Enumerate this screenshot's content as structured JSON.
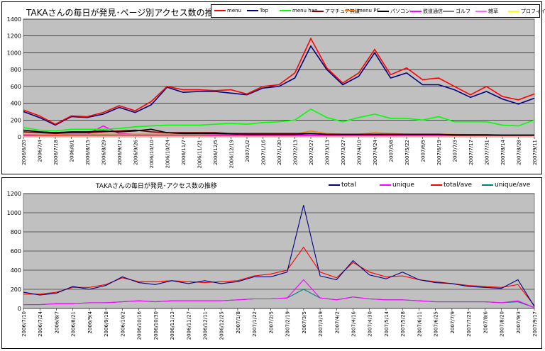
{
  "charts": [
    {
      "title": "TAKAさんの毎日が発見･ページ別アクセス数の推移",
      "legend": [
        "menu",
        "Top",
        "menu han",
        "アマチュア無線",
        "menu PC",
        "パソコン",
        "鉄道通信",
        "ゴルフ",
        "雑草",
        "プロフィイ"
      ]
    },
    {
      "title": "TAKAさんの毎日が発見･アクセス数の推移",
      "legend": [
        "total",
        "unique",
        "total/ave",
        "unique/ave"
      ]
    }
  ],
  "chart_data": [
    {
      "type": "line",
      "title": "TAKAさんの毎日が発見･ページ別アクセス数の推移",
      "ylim": [
        0,
        1400
      ],
      "yticks": [
        0,
        200,
        400,
        600,
        800,
        1000,
        1200,
        1400
      ],
      "grid": true,
      "legend_position": "top",
      "x": [
        "2006/6/20",
        "2006/7/4",
        "2006/7/18",
        "2006/8/1",
        "2006/8/15",
        "2006/8/29",
        "2006/9/12",
        "2006/9/26",
        "2006/10/10",
        "2006/10/24",
        "2006/11/7",
        "2006/11/21",
        "2006/12/5",
        "2006/12/19",
        "2007/1/2",
        "2007/1/16",
        "2007/1/30",
        "2007/2/13",
        "2007/2/27",
        "2007/3/13",
        "2007/3/27",
        "2007/4/10",
        "2007/4/24",
        "2007/5/8",
        "2007/5/22",
        "2007/6/5",
        "2007/6/19",
        "2007/7/3",
        "2007/7/17",
        "2007/7/31",
        "2007/8/14",
        "2007/8/28",
        "2007/9/11"
      ],
      "series": [
        {
          "name": "menu",
          "color": "#ff0000",
          "values": [
            320,
            250,
            150,
            250,
            240,
            290,
            370,
            310,
            420,
            600,
            560,
            560,
            550,
            560,
            510,
            600,
            620,
            760,
            1170,
            820,
            640,
            760,
            1040,
            740,
            820,
            680,
            700,
            600,
            500,
            600,
            480,
            440,
            510
          ]
        },
        {
          "name": "Top",
          "color": "#000080",
          "values": [
            300,
            230,
            140,
            240,
            230,
            270,
            350,
            290,
            380,
            590,
            530,
            540,
            540,
            520,
            500,
            580,
            600,
            700,
            1080,
            800,
            620,
            720,
            1000,
            700,
            760,
            620,
            620,
            560,
            470,
            540,
            450,
            390,
            460
          ]
        },
        {
          "name": "menu han",
          "color": "#00ff00",
          "values": [
            110,
            80,
            70,
            90,
            90,
            90,
            100,
            120,
            130,
            140,
            140,
            140,
            150,
            160,
            150,
            170,
            180,
            200,
            330,
            230,
            180,
            230,
            270,
            220,
            220,
            200,
            240,
            180,
            180,
            180,
            140,
            130,
            200
          ]
        },
        {
          "name": "アマチュア無線",
          "color": "#800000",
          "values": [
            60,
            50,
            40,
            50,
            50,
            60,
            70,
            80,
            60,
            50,
            50,
            50,
            50,
            40,
            40,
            40,
            40,
            40,
            40,
            30,
            30,
            30,
            30,
            30,
            30,
            30,
            30,
            20,
            20,
            20,
            20,
            20,
            20
          ]
        },
        {
          "name": "menu PC",
          "color": "#ff8000",
          "values": [
            30,
            25,
            25,
            25,
            30,
            30,
            30,
            30,
            30,
            30,
            30,
            30,
            30,
            30,
            30,
            30,
            30,
            30,
            70,
            40,
            30,
            30,
            50,
            40,
            30,
            30,
            30,
            30,
            25,
            25,
            20,
            20,
            25
          ]
        },
        {
          "name": "パソコン",
          "color": "#000000",
          "values": [
            80,
            60,
            50,
            60,
            60,
            70,
            60,
            70,
            90,
            50,
            40,
            40,
            40,
            35,
            30,
            30,
            30,
            30,
            40,
            30,
            30,
            30,
            30,
            30,
            30,
            30,
            30,
            25,
            25,
            25,
            20,
            20,
            20
          ]
        },
        {
          "name": "鉄道通信",
          "color": "#ff00ff",
          "values": [
            20,
            20,
            20,
            30,
            30,
            130,
            40,
            30,
            30,
            30,
            30,
            30,
            20,
            20,
            20,
            20,
            20,
            20,
            20,
            20,
            20,
            20,
            20,
            20,
            20,
            20,
            20,
            20,
            20,
            20,
            20,
            20,
            20
          ]
        },
        {
          "name": "ゴルフ",
          "color": "#808080",
          "values": [
            15,
            15,
            15,
            15,
            15,
            15,
            15,
            15,
            15,
            15,
            15,
            15,
            15,
            15,
            15,
            15,
            15,
            15,
            15,
            15,
            15,
            15,
            15,
            15,
            15,
            15,
            15,
            15,
            15,
            15,
            15,
            15,
            15
          ]
        },
        {
          "name": "雑草",
          "color": "#ff66ff",
          "values": [
            10,
            10,
            10,
            10,
            10,
            10,
            10,
            10,
            10,
            10,
            10,
            10,
            10,
            10,
            10,
            10,
            10,
            10,
            10,
            10,
            10,
            10,
            10,
            10,
            10,
            10,
            10,
            10,
            10,
            10,
            10,
            10,
            10
          ]
        },
        {
          "name": "プロフィイ",
          "color": "#ffff00",
          "values": [
            5,
            5,
            5,
            5,
            5,
            5,
            5,
            5,
            5,
            5,
            5,
            5,
            5,
            5,
            5,
            5,
            5,
            5,
            5,
            5,
            5,
            5,
            5,
            5,
            5,
            5,
            5,
            5,
            5,
            5,
            5,
            5,
            5
          ]
        }
      ]
    },
    {
      "type": "line",
      "title": "TAKAさんの毎日が発見･アクセス数の推移",
      "ylim": [
        0,
        1200
      ],
      "yticks": [
        0,
        200,
        400,
        600,
        800,
        1000,
        1200
      ],
      "grid": true,
      "legend_position": "top-right",
      "x": [
        "2006/7/10",
        "2006/7/24",
        "2006/8/7",
        "2006/8/21",
        "2006/9/4",
        "2006/9/18",
        "2006/10/2",
        "2006/10/16",
        "2006/10/30",
        "2006/11/13",
        "2006/11/27",
        "2006/12/11",
        "2006/12/25",
        "2007/1/8",
        "2007/1/22",
        "2007/2/5",
        "2007/2/19",
        "2007/3/5",
        "2007/3/19",
        "2007/4/2",
        "2007/4/16",
        "2007/4/30",
        "2007/5/14",
        "2007/5/28",
        "2007/6/11",
        "2007/6/25",
        "2007/7/9",
        "2007/7/23",
        "2007/8/6",
        "2007/8/20",
        "2007/9/3",
        "2007/9/17"
      ],
      "series": [
        {
          "name": "total",
          "color": "#000080",
          "values": [
            170,
            140,
            160,
            230,
            200,
            240,
            330,
            270,
            250,
            290,
            260,
            290,
            260,
            280,
            330,
            330,
            380,
            1080,
            340,
            300,
            500,
            350,
            310,
            380,
            300,
            270,
            260,
            230,
            220,
            210,
            300,
            20
          ]
        },
        {
          "name": "unique",
          "color": "#ff00ff",
          "values": [
            40,
            40,
            50,
            50,
            60,
            60,
            70,
            80,
            70,
            80,
            80,
            80,
            80,
            90,
            100,
            100,
            110,
            300,
            110,
            90,
            120,
            100,
            90,
            90,
            80,
            70,
            70,
            70,
            70,
            60,
            80,
            10
          ]
        },
        {
          "name": "total/ave",
          "color": "#ff0000",
          "values": [
            150,
            150,
            170,
            220,
            220,
            250,
            320,
            280,
            280,
            290,
            280,
            270,
            280,
            290,
            340,
            360,
            400,
            640,
            380,
            320,
            480,
            380,
            330,
            340,
            300,
            280,
            260,
            240,
            230,
            220,
            250,
            30
          ]
        },
        {
          "name": "unique/ave",
          "color": "#008080",
          "values": [
            40,
            40,
            50,
            50,
            60,
            60,
            70,
            80,
            70,
            80,
            80,
            80,
            80,
            90,
            100,
            100,
            110,
            200,
            110,
            90,
            120,
            100,
            90,
            90,
            80,
            70,
            70,
            70,
            70,
            60,
            70,
            10
          ]
        }
      ]
    }
  ]
}
